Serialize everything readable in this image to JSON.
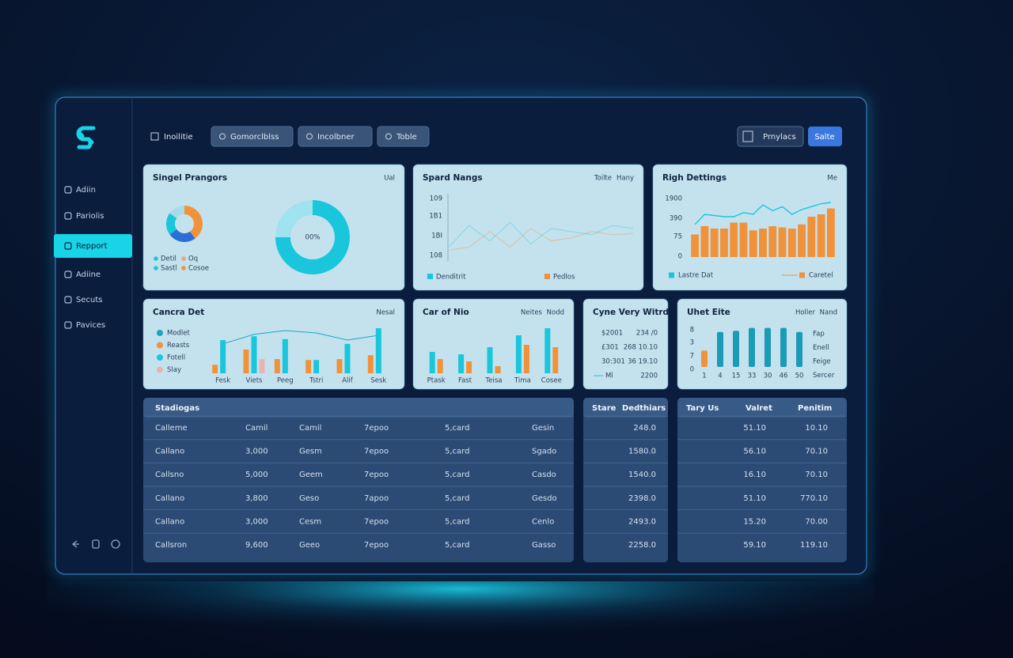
{
  "sidebar": {
    "nav": [
      "Adiin",
      "Pariolis",
      "Repport",
      "Adiine",
      "Secuts",
      "Pavices"
    ],
    "active": 2
  },
  "topbar": {
    "title": "Inoilitie",
    "tabs": [
      "Gomorclblss",
      "Incolbner",
      "Toble"
    ],
    "actions": [
      "Prnylacs",
      "Salte"
    ]
  },
  "cards": [
    {
      "title": "Singel Prangors",
      "tag": "Ual",
      "type": "donuts",
      "small": {
        "values": [
          40,
          25,
          20,
          15
        ],
        "colors": [
          "#f0923a",
          "#2b6fd6",
          "#19c6dc",
          "#a9dbe8"
        ]
      },
      "legend": [
        {
          "name": "Detil",
          "color": "#19c6dc"
        },
        {
          "name": "Oq",
          "color": "#f0a080"
        },
        {
          "name": "Sastl",
          "color": "#19c6dc"
        },
        {
          "name": "Cosoe",
          "color": "#f0923a"
        }
      ],
      "big": {
        "values": [
          75,
          25
        ],
        "colors": [
          "#19c6dc",
          "#9fe3ee"
        ],
        "center": "00%"
      }
    },
    {
      "title": "Spard Nangs",
      "tag_accent": "Toilte",
      "tag": "Hany",
      "type": "line",
      "y_labels": [
        "109",
        "1B1",
        "1BI",
        "108"
      ],
      "ylim": [
        0,
        100
      ],
      "series": [
        {
          "name": "Denditrit",
          "color": "#19c6dc",
          "values": [
            20,
            55,
            30,
            60,
            25,
            50,
            45,
            40,
            55,
            50
          ]
        },
        {
          "name": "Pedlos",
          "color": "#f0923a",
          "values": [
            15,
            20,
            45,
            20,
            50,
            30,
            35,
            45,
            40,
            42
          ]
        }
      ]
    },
    {
      "title": "Righ Dettings",
      "tag": "Me",
      "type": "bar_line",
      "y_labels": [
        "1900",
        "390",
        "75",
        "0"
      ],
      "ylim": [
        0,
        100
      ],
      "series": [
        {
          "name": "Lastre Dat",
          "color": "#19c6dc",
          "kind": "line",
          "values": [
            55,
            72,
            70,
            68,
            68,
            75,
            72,
            88,
            78,
            85,
            72,
            80,
            85,
            90,
            92
          ]
        },
        {
          "name": "Caretel",
          "color": "#f0923a",
          "kind": "bar",
          "values": [
            38,
            52,
            48,
            48,
            58,
            58,
            45,
            48,
            52,
            50,
            48,
            55,
            68,
            72,
            82
          ]
        }
      ]
    },
    {
      "title": "Cancra Det",
      "tag": "Nesal",
      "type": "grouped",
      "categories": [
        "Fesk",
        "Viets",
        "Peeg",
        "Tstri",
        "Alif",
        "Sesk"
      ],
      "ylim": [
        0,
        100
      ],
      "series": [
        {
          "name": "Modlet",
          "color": "#1aa6c0",
          "kind": "line",
          "values": [
            62,
            82,
            90,
            85,
            70,
            80
          ]
        },
        {
          "name": "Reasts",
          "color": "#f0923a",
          "kind": "bar",
          "values": [
            18,
            50,
            30,
            28,
            30,
            38
          ]
        },
        {
          "name": "Fotell",
          "color": "#19c6dc",
          "kind": "bar",
          "values": [
            70,
            78,
            72,
            28,
            62,
            95
          ]
        },
        {
          "name": "Slay",
          "color": "#e8b4b0",
          "kind": "bar",
          "values": [
            null,
            30,
            null,
            null,
            null,
            null
          ]
        }
      ]
    },
    {
      "title": "Car of Nio",
      "tag_accent": "Neites",
      "tag": "Nodd",
      "type": "grouped",
      "categories": [
        "Ptask",
        "Fast",
        "Teisa",
        "Tima",
        "Cosee"
      ],
      "ylim": [
        0,
        100
      ],
      "series": [
        {
          "color": "#19c6dc",
          "kind": "bar",
          "values": [
            45,
            40,
            55,
            80,
            95
          ]
        },
        {
          "color": "#f0923a",
          "kind": "bar",
          "values": [
            30,
            25,
            15,
            60,
            55
          ]
        }
      ]
    },
    {
      "title": "Cyne Very Witrd",
      "type": "text",
      "rows": [
        [
          "$2001",
          "234 /0"
        ],
        [
          "£301",
          "268 10.10"
        ],
        [
          "30:301",
          "36 19.10"
        ],
        [
          "Ml",
          "2200"
        ]
      ]
    },
    {
      "title": "Uhet Eite",
      "tag_accent": "Holler",
      "tag": "Nand",
      "type": "bars",
      "y_labels": [
        "8",
        "3",
        "7",
        "0"
      ],
      "categories": [
        "1",
        "4",
        "15",
        "33",
        "30",
        "46",
        "50"
      ],
      "ylim": [
        0,
        100
      ],
      "values": [
        40,
        85,
        88,
        95,
        95,
        95,
        85
      ],
      "colors": [
        "#f0923a",
        "#1a9bb8",
        "#1a9bb8",
        "#1a9bb8",
        "#1a9bb8",
        "#1a9bb8",
        "#1a9bb8"
      ],
      "side_labels": [
        "Fap",
        "Enell",
        "Feige",
        "Sercer"
      ]
    }
  ],
  "tables": [
    {
      "header": [
        "Stadiogas"
      ],
      "rows": [
        [
          "Calleme",
          "Camil",
          "Camil",
          "7epoo",
          "5,card",
          "Gesin"
        ],
        [
          "Callano",
          "3,000",
          "Gesm",
          "7epoo",
          "5,card",
          "Sgado"
        ],
        [
          "Callsno",
          "5,000",
          "Geem",
          "7epoo",
          "5,card",
          "Casdo"
        ],
        [
          "Callano",
          "3,800",
          "Geso",
          "7apoo",
          "5,card",
          "Gesdo"
        ],
        [
          "Callano",
          "3,000",
          "Cesm",
          "7epoo",
          "5,card",
          "Cenlo"
        ],
        [
          "Callsron",
          "9,600",
          "Geeo",
          "7epoo",
          "5,card",
          "Gasso"
        ]
      ]
    },
    {
      "header": [
        "Stare",
        "Dedthiars"
      ],
      "rows": [
        [
          "248.0"
        ],
        [
          "1580.0"
        ],
        [
          "1540.0"
        ],
        [
          "2398.0"
        ],
        [
          "2493.0"
        ],
        [
          "2258.0"
        ]
      ]
    },
    {
      "header": [
        "Tary Us",
        "Valret",
        "Penitim"
      ],
      "rows": [
        [
          "51.10",
          "10.10"
        ],
        [
          "56.10",
          "70.10"
        ],
        [
          "16.10",
          "70.10"
        ],
        [
          "51.10",
          "770.10"
        ],
        [
          "15.20",
          "70.00"
        ],
        [
          "59.10",
          "119.10"
        ]
      ]
    }
  ]
}
